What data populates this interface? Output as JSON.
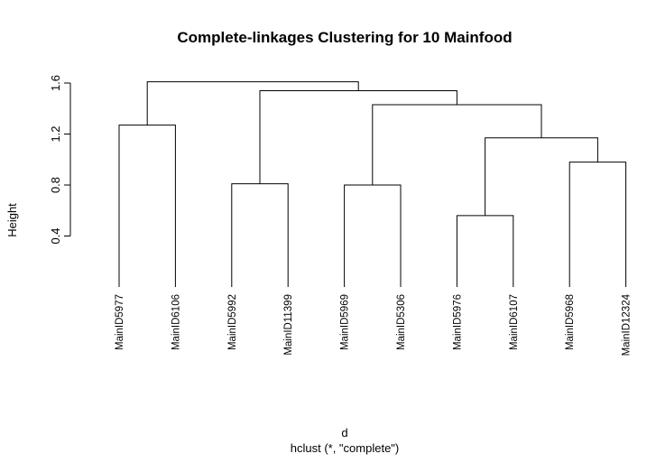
{
  "chart_data": {
    "type": "dendrogram",
    "title": "Complete-linkages Clustering for 10 Mainfood",
    "ylabel": "Height",
    "xlabel": "d",
    "subtitle": "hclust (*, \"complete\")",
    "y_ticks": [
      "0.4",
      "0.8",
      "1.2",
      "1.6"
    ],
    "y_tick_values": [
      0.4,
      0.8,
      1.2,
      1.6
    ],
    "ylim": [
      0,
      1.7
    ],
    "leaves": [
      "MainID5977",
      "MainID6106",
      "MainID5992",
      "MainID11399",
      "MainID5969",
      "MainID5306",
      "MainID5976",
      "MainID6107",
      "MainID5968",
      "MainID12324"
    ],
    "merges": [
      {
        "id": "m1",
        "left": "L0",
        "right": "L1",
        "height": 1.27
      },
      {
        "id": "m2",
        "left": "L2",
        "right": "L3",
        "height": 0.81
      },
      {
        "id": "m3",
        "left": "L4",
        "right": "L5",
        "height": 0.8
      },
      {
        "id": "m4",
        "left": "L6",
        "right": "L7",
        "height": 0.56
      },
      {
        "id": "m5",
        "left": "L8",
        "right": "L9",
        "height": 0.98
      },
      {
        "id": "m6",
        "left": "m4",
        "right": "m5",
        "height": 1.17
      },
      {
        "id": "m7",
        "left": "m3",
        "right": "m6",
        "height": 1.43
      },
      {
        "id": "m8",
        "left": "m2",
        "right": "m7",
        "height": 1.54
      },
      {
        "id": "m9",
        "left": "m1",
        "right": "m8",
        "height": 1.61
      }
    ]
  }
}
